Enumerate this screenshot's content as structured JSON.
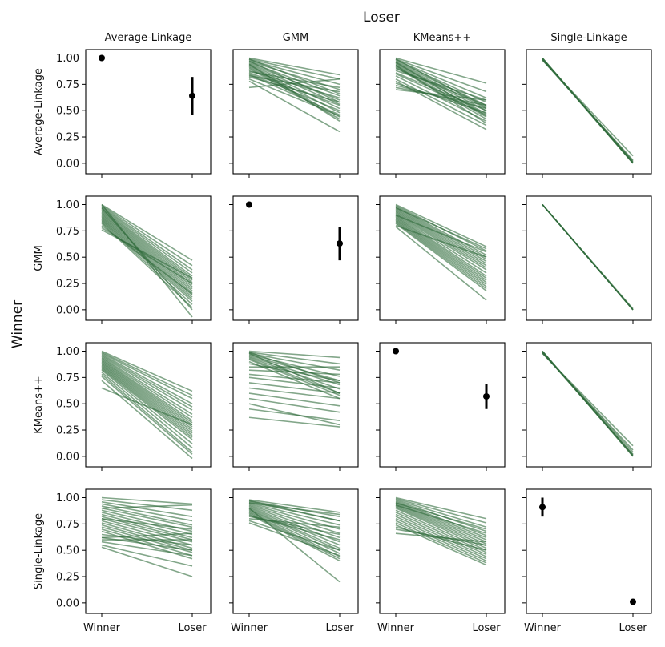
{
  "figure": {
    "column_title": "Loser",
    "row_title": "Winner",
    "col_labels": [
      "Average-Linkage",
      "GMM",
      "KMeans++",
      "Single-Linkage"
    ],
    "row_labels": [
      "Average-Linkage",
      "GMM",
      "KMeans++",
      "Single-Linkage"
    ]
  },
  "colors": {
    "line": "#2e6b3a",
    "point": "#000000",
    "axis": "#000000"
  },
  "chart_data": {
    "type": "line",
    "layout": "4x4 grid of small multiples (rows = winner model, columns = loser model)",
    "x_categories": [
      "Winner",
      "Loser"
    ],
    "y_ticks": [
      "0.00",
      "0.25",
      "0.50",
      "0.75",
      "1.00"
    ],
    "ylim": [
      -0.1,
      1.08
    ],
    "grid": false,
    "panels": [
      {
        "row": "Average-Linkage",
        "col": "Average-Linkage",
        "kind": "errorbar",
        "points": [
          {
            "x": "Winner",
            "y": 1.0,
            "low": 1.0,
            "high": 1.0
          },
          {
            "x": "Loser",
            "y": 0.64,
            "low": 0.46,
            "high": 0.82
          }
        ]
      },
      {
        "row": "Average-Linkage",
        "col": "GMM",
        "kind": "lines",
        "pairs": [
          [
            1.0,
            0.84
          ],
          [
            0.99,
            0.8
          ],
          [
            0.98,
            0.75
          ],
          [
            0.97,
            0.7
          ],
          [
            0.96,
            0.64
          ],
          [
            0.95,
            0.6
          ],
          [
            0.94,
            0.56
          ],
          [
            0.93,
            0.52
          ],
          [
            0.92,
            0.48
          ],
          [
            0.91,
            0.44
          ],
          [
            0.9,
            0.42
          ],
          [
            0.88,
            0.62
          ],
          [
            0.87,
            0.72
          ],
          [
            0.86,
            0.55
          ],
          [
            0.85,
            0.5
          ],
          [
            0.84,
            0.46
          ],
          [
            0.83,
            0.68
          ],
          [
            0.82,
            0.58
          ],
          [
            0.8,
            0.45
          ],
          [
            0.78,
            0.3
          ],
          [
            0.72,
            0.8
          ],
          [
            0.99,
            0.66
          ],
          [
            0.97,
            0.58
          ],
          [
            0.94,
            0.4
          ]
        ]
      },
      {
        "row": "Average-Linkage",
        "col": "KMeans++",
        "kind": "lines",
        "pairs": [
          [
            1.0,
            0.76
          ],
          [
            0.99,
            0.68
          ],
          [
            0.98,
            0.62
          ],
          [
            0.97,
            0.58
          ],
          [
            0.96,
            0.55
          ],
          [
            0.95,
            0.52
          ],
          [
            0.94,
            0.5
          ],
          [
            0.93,
            0.47
          ],
          [
            0.92,
            0.44
          ],
          [
            0.91,
            0.42
          ],
          [
            0.9,
            0.55
          ],
          [
            0.88,
            0.6
          ],
          [
            0.86,
            0.5
          ],
          [
            0.85,
            0.46
          ],
          [
            0.83,
            0.4
          ],
          [
            0.8,
            0.36
          ],
          [
            0.78,
            0.32
          ],
          [
            0.76,
            0.48
          ],
          [
            0.74,
            0.52
          ],
          [
            0.72,
            0.55
          ],
          [
            0.7,
            0.6
          ],
          [
            0.99,
            0.53
          ],
          [
            0.96,
            0.45
          ],
          [
            0.93,
            0.38
          ]
        ]
      },
      {
        "row": "Average-Linkage",
        "col": "Single-Linkage",
        "kind": "lines",
        "pairs": [
          [
            1.0,
            0.0
          ],
          [
            1.0,
            0.01
          ],
          [
            0.99,
            0.0
          ],
          [
            0.99,
            0.02
          ],
          [
            0.98,
            0.03
          ],
          [
            0.98,
            0.07
          ],
          [
            1.0,
            0.0
          ],
          [
            0.99,
            0.01
          ]
        ]
      },
      {
        "row": "GMM",
        "col": "Average-Linkage",
        "kind": "lines",
        "pairs": [
          [
            1.0,
            0.47
          ],
          [
            0.99,
            0.42
          ],
          [
            0.98,
            0.38
          ],
          [
            0.97,
            0.35
          ],
          [
            0.96,
            0.32
          ],
          [
            0.95,
            0.3
          ],
          [
            0.94,
            0.28
          ],
          [
            0.93,
            0.26
          ],
          [
            0.92,
            0.24
          ],
          [
            0.91,
            0.22
          ],
          [
            0.9,
            0.2
          ],
          [
            0.89,
            0.18
          ],
          [
            0.88,
            0.16
          ],
          [
            0.87,
            0.14
          ],
          [
            0.86,
            0.12
          ],
          [
            0.85,
            0.1
          ],
          [
            0.84,
            0.08
          ],
          [
            0.83,
            0.05
          ],
          [
            0.82,
            0.02
          ],
          [
            0.8,
            0.15
          ],
          [
            0.78,
            0.25
          ],
          [
            0.76,
            0.3
          ],
          [
            0.97,
            0.0
          ],
          [
            1.0,
            -0.07
          ]
        ]
      },
      {
        "row": "GMM",
        "col": "GMM",
        "kind": "errorbar",
        "points": [
          {
            "x": "Winner",
            "y": 1.0,
            "low": 1.0,
            "high": 1.0
          },
          {
            "x": "Loser",
            "y": 0.63,
            "low": 0.47,
            "high": 0.79
          }
        ]
      },
      {
        "row": "GMM",
        "col": "KMeans++",
        "kind": "lines",
        "pairs": [
          [
            1.0,
            0.6
          ],
          [
            0.99,
            0.56
          ],
          [
            0.98,
            0.52
          ],
          [
            0.97,
            0.5
          ],
          [
            0.96,
            0.48
          ],
          [
            0.95,
            0.46
          ],
          [
            0.94,
            0.44
          ],
          [
            0.93,
            0.42
          ],
          [
            0.92,
            0.4
          ],
          [
            0.91,
            0.38
          ],
          [
            0.9,
            0.35
          ],
          [
            0.89,
            0.32
          ],
          [
            0.88,
            0.3
          ],
          [
            0.87,
            0.28
          ],
          [
            0.86,
            0.26
          ],
          [
            0.85,
            0.24
          ],
          [
            0.84,
            0.22
          ],
          [
            0.83,
            0.2
          ],
          [
            0.82,
            0.18
          ],
          [
            0.8,
            0.5
          ],
          [
            0.79,
            0.09
          ],
          [
            0.9,
            0.55
          ],
          [
            0.97,
            0.58
          ]
        ]
      },
      {
        "row": "GMM",
        "col": "Single-Linkage",
        "kind": "lines",
        "pairs": [
          [
            1.0,
            0.0
          ],
          [
            1.0,
            0.0
          ],
          [
            1.0,
            0.0
          ],
          [
            1.0,
            0.01
          ],
          [
            1.0,
            0.0
          ],
          [
            1.0,
            0.0
          ]
        ]
      },
      {
        "row": "KMeans++",
        "col": "Average-Linkage",
        "kind": "lines",
        "pairs": [
          [
            1.0,
            0.62
          ],
          [
            0.99,
            0.58
          ],
          [
            0.98,
            0.55
          ],
          [
            0.97,
            0.5
          ],
          [
            0.96,
            0.47
          ],
          [
            0.95,
            0.44
          ],
          [
            0.94,
            0.4
          ],
          [
            0.93,
            0.37
          ],
          [
            0.92,
            0.34
          ],
          [
            0.91,
            0.32
          ],
          [
            0.9,
            0.3
          ],
          [
            0.89,
            0.28
          ],
          [
            0.88,
            0.26
          ],
          [
            0.87,
            0.24
          ],
          [
            0.86,
            0.22
          ],
          [
            0.85,
            0.2
          ],
          [
            0.84,
            0.18
          ],
          [
            0.83,
            0.16
          ],
          [
            0.82,
            0.12
          ],
          [
            0.8,
            0.08
          ],
          [
            0.78,
            0.04
          ],
          [
            0.76,
            0.02
          ],
          [
            0.72,
            -0.02
          ],
          [
            0.65,
            0.3
          ]
        ]
      },
      {
        "row": "KMeans++",
        "col": "GMM",
        "kind": "lines",
        "pairs": [
          [
            1.0,
            0.94
          ],
          [
            0.99,
            0.88
          ],
          [
            0.98,
            0.82
          ],
          [
            0.97,
            0.76
          ],
          [
            0.96,
            0.72
          ],
          [
            0.95,
            0.68
          ],
          [
            0.94,
            0.64
          ],
          [
            0.93,
            0.6
          ],
          [
            0.92,
            0.58
          ],
          [
            0.9,
            0.55
          ],
          [
            0.88,
            0.72
          ],
          [
            0.85,
            0.85
          ],
          [
            0.82,
            0.78
          ],
          [
            0.78,
            0.7
          ],
          [
            0.75,
            0.65
          ],
          [
            0.7,
            0.6
          ],
          [
            0.65,
            0.55
          ],
          [
            0.6,
            0.48
          ],
          [
            0.55,
            0.42
          ],
          [
            0.5,
            0.3
          ],
          [
            0.45,
            0.34
          ],
          [
            0.37,
            0.28
          ],
          [
            0.98,
            0.6
          ],
          [
            0.99,
            0.7
          ]
        ]
      },
      {
        "row": "KMeans++",
        "col": "KMeans++",
        "kind": "errorbar",
        "points": [
          {
            "x": "Winner",
            "y": 1.0,
            "low": 1.0,
            "high": 1.0
          },
          {
            "x": "Loser",
            "y": 0.57,
            "low": 0.45,
            "high": 0.69
          }
        ]
      },
      {
        "row": "KMeans++",
        "col": "Single-Linkage",
        "kind": "lines",
        "pairs": [
          [
            1.0,
            0.0
          ],
          [
            1.0,
            0.01
          ],
          [
            0.99,
            0.02
          ],
          [
            0.99,
            0.04
          ],
          [
            0.98,
            0.06
          ],
          [
            0.98,
            0.1
          ],
          [
            1.0,
            0.0
          ],
          [
            0.99,
            0.01
          ]
        ]
      },
      {
        "row": "Single-Linkage",
        "col": "Average-Linkage",
        "kind": "lines",
        "pairs": [
          [
            1.0,
            0.94
          ],
          [
            0.98,
            0.88
          ],
          [
            0.96,
            0.82
          ],
          [
            0.94,
            0.78
          ],
          [
            0.92,
            0.74
          ],
          [
            0.9,
            0.72
          ],
          [
            0.88,
            0.68
          ],
          [
            0.86,
            0.65
          ],
          [
            0.84,
            0.62
          ],
          [
            0.82,
            0.6
          ],
          [
            0.8,
            0.58
          ],
          [
            0.78,
            0.55
          ],
          [
            0.76,
            0.52
          ],
          [
            0.74,
            0.5
          ],
          [
            0.72,
            0.48
          ],
          [
            0.7,
            0.45
          ],
          [
            0.68,
            0.42
          ],
          [
            0.65,
            0.55
          ],
          [
            0.62,
            0.5
          ],
          [
            0.6,
            0.6
          ],
          [
            0.58,
            0.45
          ],
          [
            0.55,
            0.35
          ],
          [
            0.53,
            0.25
          ],
          [
            0.62,
            0.66
          ],
          [
            0.9,
            0.93
          ],
          [
            0.8,
            0.7
          ]
        ]
      },
      {
        "row": "Single-Linkage",
        "col": "GMM",
        "kind": "lines",
        "pairs": [
          [
            0.98,
            0.86
          ],
          [
            0.97,
            0.82
          ],
          [
            0.96,
            0.78
          ],
          [
            0.95,
            0.74
          ],
          [
            0.94,
            0.7
          ],
          [
            0.93,
            0.66
          ],
          [
            0.92,
            0.62
          ],
          [
            0.91,
            0.58
          ],
          [
            0.9,
            0.55
          ],
          [
            0.89,
            0.52
          ],
          [
            0.88,
            0.5
          ],
          [
            0.87,
            0.47
          ],
          [
            0.86,
            0.44
          ],
          [
            0.85,
            0.42
          ],
          [
            0.84,
            0.4
          ],
          [
            0.83,
            0.6
          ],
          [
            0.82,
            0.65
          ],
          [
            0.8,
            0.72
          ],
          [
            0.78,
            0.5
          ],
          [
            0.76,
            0.45
          ],
          [
            0.9,
            0.2
          ],
          [
            0.95,
            0.84
          ],
          [
            0.97,
            0.78
          ]
        ]
      },
      {
        "row": "Single-Linkage",
        "col": "KMeans++",
        "kind": "lines",
        "pairs": [
          [
            1.0,
            0.8
          ],
          [
            0.99,
            0.76
          ],
          [
            0.98,
            0.72
          ],
          [
            0.97,
            0.68
          ],
          [
            0.96,
            0.64
          ],
          [
            0.95,
            0.62
          ],
          [
            0.94,
            0.6
          ],
          [
            0.93,
            0.58
          ],
          [
            0.92,
            0.56
          ],
          [
            0.91,
            0.54
          ],
          [
            0.9,
            0.52
          ],
          [
            0.88,
            0.5
          ],
          [
            0.86,
            0.48
          ],
          [
            0.84,
            0.46
          ],
          [
            0.82,
            0.44
          ],
          [
            0.8,
            0.42
          ],
          [
            0.78,
            0.4
          ],
          [
            0.76,
            0.38
          ],
          [
            0.74,
            0.36
          ],
          [
            0.72,
            0.5
          ],
          [
            0.7,
            0.55
          ],
          [
            0.66,
            0.58
          ],
          [
            0.95,
            0.7
          ],
          [
            0.93,
            0.66
          ]
        ]
      },
      {
        "row": "Single-Linkage",
        "col": "Single-Linkage",
        "kind": "errorbar",
        "points": [
          {
            "x": "Winner",
            "y": 0.91,
            "low": 0.82,
            "high": 1.0
          },
          {
            "x": "Loser",
            "y": 0.01,
            "low": 0.0,
            "high": 0.02
          }
        ]
      }
    ]
  }
}
